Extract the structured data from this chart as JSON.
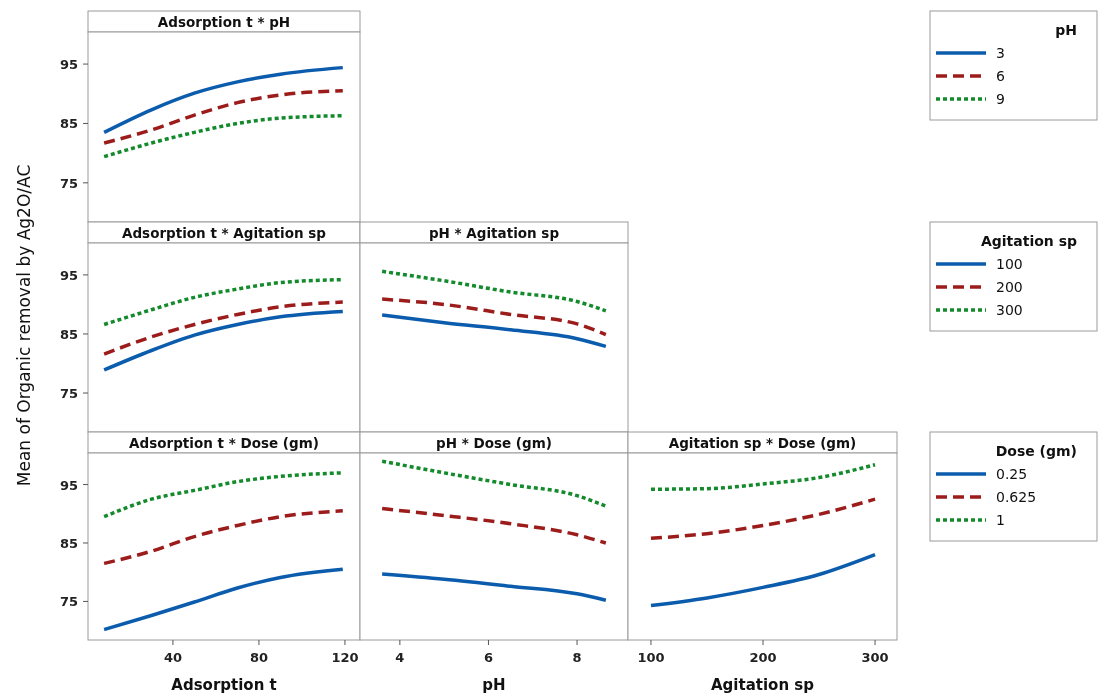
{
  "chart_data": [
    {
      "type": "line",
      "title": "Adsorption t * pH",
      "x": [
        8,
        30,
        50,
        70,
        90,
        119
      ],
      "xlim": [
        0.5,
        127
      ],
      "ylim": [
        68.4,
        100.4
      ],
      "yticks": [
        75,
        85,
        95
      ],
      "tick_labels": "y",
      "legend": "right",
      "legend_title": "pH",
      "series": [
        {
          "name": "3",
          "color": "#0b5cad",
          "line_style": "solid",
          "values": [
            83.5,
            87.3,
            90.1,
            92.0,
            93.3,
            94.4
          ]
        },
        {
          "name": "6",
          "color": "#9c1c1c",
          "line_style": "dashed",
          "values": [
            81.7,
            83.9,
            86.4,
            88.5,
            89.8,
            90.5
          ]
        },
        {
          "name": "9",
          "color": "#138a2c",
          "line_style": "dotted",
          "values": [
            79.4,
            81.7,
            83.5,
            85.0,
            85.9,
            86.3
          ]
        }
      ]
    },
    {
      "type": "line",
      "title": "Adsorption t * Agitation sp",
      "ylabel": "Mean of Organic removal by Ag2O/AC",
      "x": [
        8,
        30,
        50,
        70,
        90,
        119
      ],
      "xlim": [
        0.5,
        127
      ],
      "ylim": [
        68.4,
        100.4
      ],
      "yticks": [
        75,
        85,
        95
      ],
      "tick_labels": "y",
      "series": [
        {
          "color": "#0b5cad",
          "line_style": "solid",
          "values": [
            78.9,
            82.2,
            84.8,
            86.6,
            87.9,
            88.8
          ]
        },
        {
          "color": "#9c1c1c",
          "line_style": "dashed",
          "values": [
            81.6,
            84.5,
            86.6,
            88.3,
            89.6,
            90.4
          ]
        },
        {
          "color": "#138a2c",
          "line_style": "dotted",
          "values": [
            86.6,
            89.1,
            91.2,
            92.6,
            93.7,
            94.2
          ]
        }
      ]
    },
    {
      "type": "line",
      "title": "pH * Agitation sp",
      "x": [
        3.6,
        5,
        6.5,
        8,
        8.65
      ],
      "xlim": [
        3.1,
        9.15
      ],
      "ylim": [
        68.4,
        100.4
      ],
      "tick_labels": false,
      "legend": "right",
      "legend_title": "Agitation sp",
      "series": [
        {
          "name": "100",
          "color": "#0b5cad",
          "line_style": "solid",
          "values": [
            88.2,
            86.9,
            85.7,
            84.2,
            82.9
          ]
        },
        {
          "name": "200",
          "color": "#9c1c1c",
          "line_style": "dashed",
          "values": [
            90.9,
            90.0,
            88.3,
            86.7,
            84.9
          ]
        },
        {
          "name": "300",
          "color": "#138a2c",
          "line_style": "dotted",
          "values": [
            95.6,
            94.0,
            92.1,
            90.5,
            88.9
          ]
        }
      ]
    },
    {
      "type": "line",
      "title": "Adsorption t * Dose (gm)",
      "xlabel": "Adsorption t",
      "x": [
        8,
        30,
        50,
        70,
        90,
        119
      ],
      "xlim": [
        0.5,
        127
      ],
      "xticks": [
        40,
        80,
        120
      ],
      "ylim": [
        68.4,
        100.4
      ],
      "yticks": [
        75,
        85,
        95
      ],
      "series": [
        {
          "color": "#0b5cad",
          "line_style": "solid",
          "values": [
            70.2,
            72.6,
            74.9,
            77.3,
            79.1,
            80.5
          ]
        },
        {
          "color": "#9c1c1c",
          "line_style": "dashed",
          "values": [
            81.5,
            83.6,
            86.1,
            88.0,
            89.5,
            90.5
          ]
        },
        {
          "color": "#138a2c",
          "line_style": "dotted",
          "values": [
            89.5,
            92.5,
            94.0,
            95.5,
            96.4,
            97.0
          ]
        }
      ]
    },
    {
      "type": "line",
      "title": "pH * Dose (gm)",
      "xlabel": "pH",
      "x": [
        3.6,
        5,
        6.5,
        8,
        8.65
      ],
      "xlim": [
        3.1,
        9.15
      ],
      "xticks": [
        4,
        6,
        8
      ],
      "ylim": [
        68.4,
        100.4
      ],
      "tick_labels": "x",
      "series": [
        {
          "color": "#0b5cad",
          "line_style": "solid",
          "values": [
            79.7,
            78.8,
            77.6,
            76.3,
            75.2
          ]
        },
        {
          "color": "#9c1c1c",
          "line_style": "dashed",
          "values": [
            90.9,
            89.7,
            88.3,
            86.4,
            85.0
          ]
        },
        {
          "color": "#138a2c",
          "line_style": "dotted",
          "values": [
            99.0,
            97.0,
            95.0,
            93.1,
            91.3
          ]
        }
      ]
    },
    {
      "type": "line",
      "title": "Agitation sp * Dose (gm)",
      "xlabel": "Agitation sp",
      "x": [
        100,
        150,
        200,
        250,
        300
      ],
      "xlim": [
        79.5,
        319.6
      ],
      "xticks": [
        100,
        200,
        300
      ],
      "ylim": [
        68.4,
        100.4
      ],
      "tick_labels": "x",
      "legend": "right",
      "legend_title": "Dose (gm)",
      "series": [
        {
          "name": "0.25",
          "color": "#0b5cad",
          "line_style": "solid",
          "values": [
            74.3,
            75.6,
            77.4,
            79.6,
            83.0
          ]
        },
        {
          "name": "0.625",
          "color": "#9c1c1c",
          "line_style": "dashed",
          "values": [
            85.8,
            86.6,
            88.0,
            89.9,
            92.5
          ]
        },
        {
          "name": "1",
          "color": "#138a2c",
          "line_style": "dotted",
          "values": [
            94.2,
            94.3,
            95.1,
            96.2,
            98.4
          ]
        }
      ]
    }
  ]
}
